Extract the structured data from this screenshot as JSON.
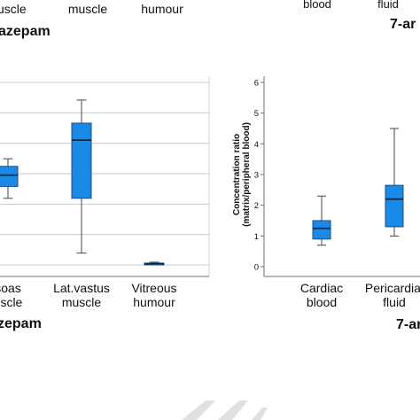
{
  "top_row": {
    "left_labels": [
      "uscle",
      "muscle",
      "humour"
    ],
    "left_title": "azepam",
    "right_labels": [
      "blood",
      "fluid"
    ],
    "right_title": "7-ar"
  },
  "panel_left": {
    "title": "zepam"
  },
  "panel_right": {
    "title": "7-ar"
  },
  "colors": {
    "box_fill": "#1a8ae6",
    "box_stroke": "#1b4f8a",
    "grid": "#c9c9c9",
    "axis": "#6f6f6f"
  },
  "chart_data": [
    {
      "type": "box",
      "title": "zepam",
      "xlabel": "",
      "ylabel": "",
      "grid": true,
      "ylim": [
        0,
        6
      ],
      "categories": [
        [
          "soas",
          "uscle"
        ],
        [
          "Lat.vastus",
          "muscle"
        ],
        [
          "Vitreous",
          "humour"
        ]
      ],
      "boxes": [
        {
          "min": 2.19,
          "q1": 2.58,
          "median": 2.95,
          "q3": 3.24,
          "max": 3.49
        },
        {
          "min": 0.39,
          "q1": 2.19,
          "median": 4.1,
          "q3": 4.66,
          "max": 5.42
        },
        {
          "min": 0.0,
          "q1": 0.0,
          "median": 0.04,
          "q3": 0.06,
          "max": 0.09
        }
      ]
    },
    {
      "type": "box",
      "title": "7-ar",
      "xlabel": "",
      "ylabel": "Concentration ratio\n(matrix/peripheral blood)",
      "ylabel_lines": [
        "Concentration ratio",
        "(matrix/peripheral blood)"
      ],
      "grid": false,
      "ylim": [
        0,
        6
      ],
      "yticks": [
        "0",
        "1",
        "2",
        "3",
        "4",
        "5",
        "6"
      ],
      "categories": [
        [
          "Cardiac",
          "blood"
        ],
        [
          "Pericardial",
          "fluid"
        ]
      ],
      "boxes": [
        {
          "min": 0.7,
          "q1": 0.9,
          "median": 1.25,
          "q3": 1.5,
          "max": 2.3
        },
        {
          "min": 1.0,
          "q1": 1.3,
          "median": 2.2,
          "q3": 2.65,
          "max": 4.5
        }
      ]
    }
  ]
}
